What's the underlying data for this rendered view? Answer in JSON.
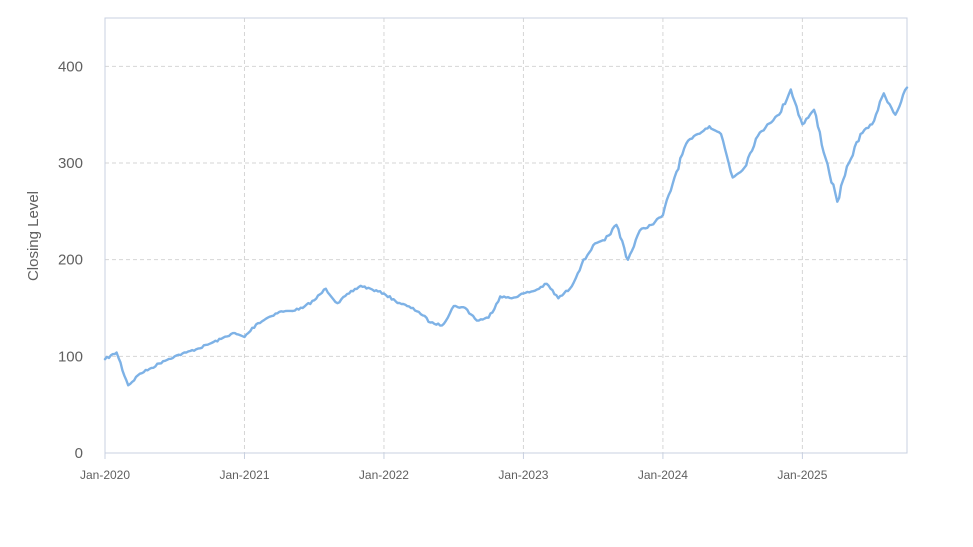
{
  "chart_data": {
    "type": "line",
    "title": "",
    "xlabel": "",
    "ylabel": "Closing Level",
    "ylim": [
      0,
      450
    ],
    "xlim": [
      "2020-01",
      "2025-10"
    ],
    "y_ticks": [
      0,
      100,
      200,
      300,
      400
    ],
    "y_tick_labels": [
      "0",
      "100",
      "200",
      "300",
      "400"
    ],
    "x_ticks": [
      "2020-01",
      "2021-01",
      "2022-01",
      "2023-01",
      "2024-01",
      "2025-01"
    ],
    "x_tick_labels": [
      "Jan-2020",
      "Jan-2021",
      "Jan-2022",
      "Jan-2023",
      "Jan-2024",
      "Jan-2025"
    ],
    "grid": true,
    "legend": "none",
    "colors": {
      "line": "#7eb2e6",
      "grid": "#d6d6d6",
      "frame": "#c8d0e0"
    },
    "series": [
      {
        "x": [
          "2020-01",
          "2020-02",
          "2020-03",
          "2020-04",
          "2020-05",
          "2020-06",
          "2020-07",
          "2020-08",
          "2020-09",
          "2020-10",
          "2020-11",
          "2020-12",
          "2021-01",
          "2021-02",
          "2021-03",
          "2021-04",
          "2021-05",
          "2021-06",
          "2021-07",
          "2021-08",
          "2021-09",
          "2021-10",
          "2021-11",
          "2021-12",
          "2022-01",
          "2022-02",
          "2022-03",
          "2022-04",
          "2022-05",
          "2022-06",
          "2022-07",
          "2022-08",
          "2022-09",
          "2022-10",
          "2022-11",
          "2022-12",
          "2023-01",
          "2023-02",
          "2023-03",
          "2023-04",
          "2023-05",
          "2023-06",
          "2023-07",
          "2023-08",
          "2023-09",
          "2023-10",
          "2023-11",
          "2023-12",
          "2024-01",
          "2024-02",
          "2024-03",
          "2024-04",
          "2024-05",
          "2024-06",
          "2024-07",
          "2024-08",
          "2024-09",
          "2024-10",
          "2024-11",
          "2024-12",
          "2025-01",
          "2025-02",
          "2025-03",
          "2025-04",
          "2025-05",
          "2025-06",
          "2025-07",
          "2025-08",
          "2025-09",
          "2025-10"
        ],
        "values": [
          97,
          104,
          70,
          82,
          88,
          95,
          100,
          104,
          108,
          113,
          118,
          124,
          120,
          133,
          140,
          146,
          147,
          150,
          158,
          170,
          155,
          165,
          173,
          169,
          165,
          157,
          152,
          146,
          135,
          132,
          152,
          150,
          137,
          140,
          162,
          160,
          165,
          168,
          175,
          160,
          170,
          195,
          215,
          220,
          236,
          200,
          230,
          236,
          246,
          285,
          320,
          330,
          338,
          330,
          285,
          295,
          325,
          340,
          350,
          376,
          340,
          355,
          305,
          260,
          300,
          330,
          340,
          372,
          350,
          378
        ]
      }
    ]
  }
}
